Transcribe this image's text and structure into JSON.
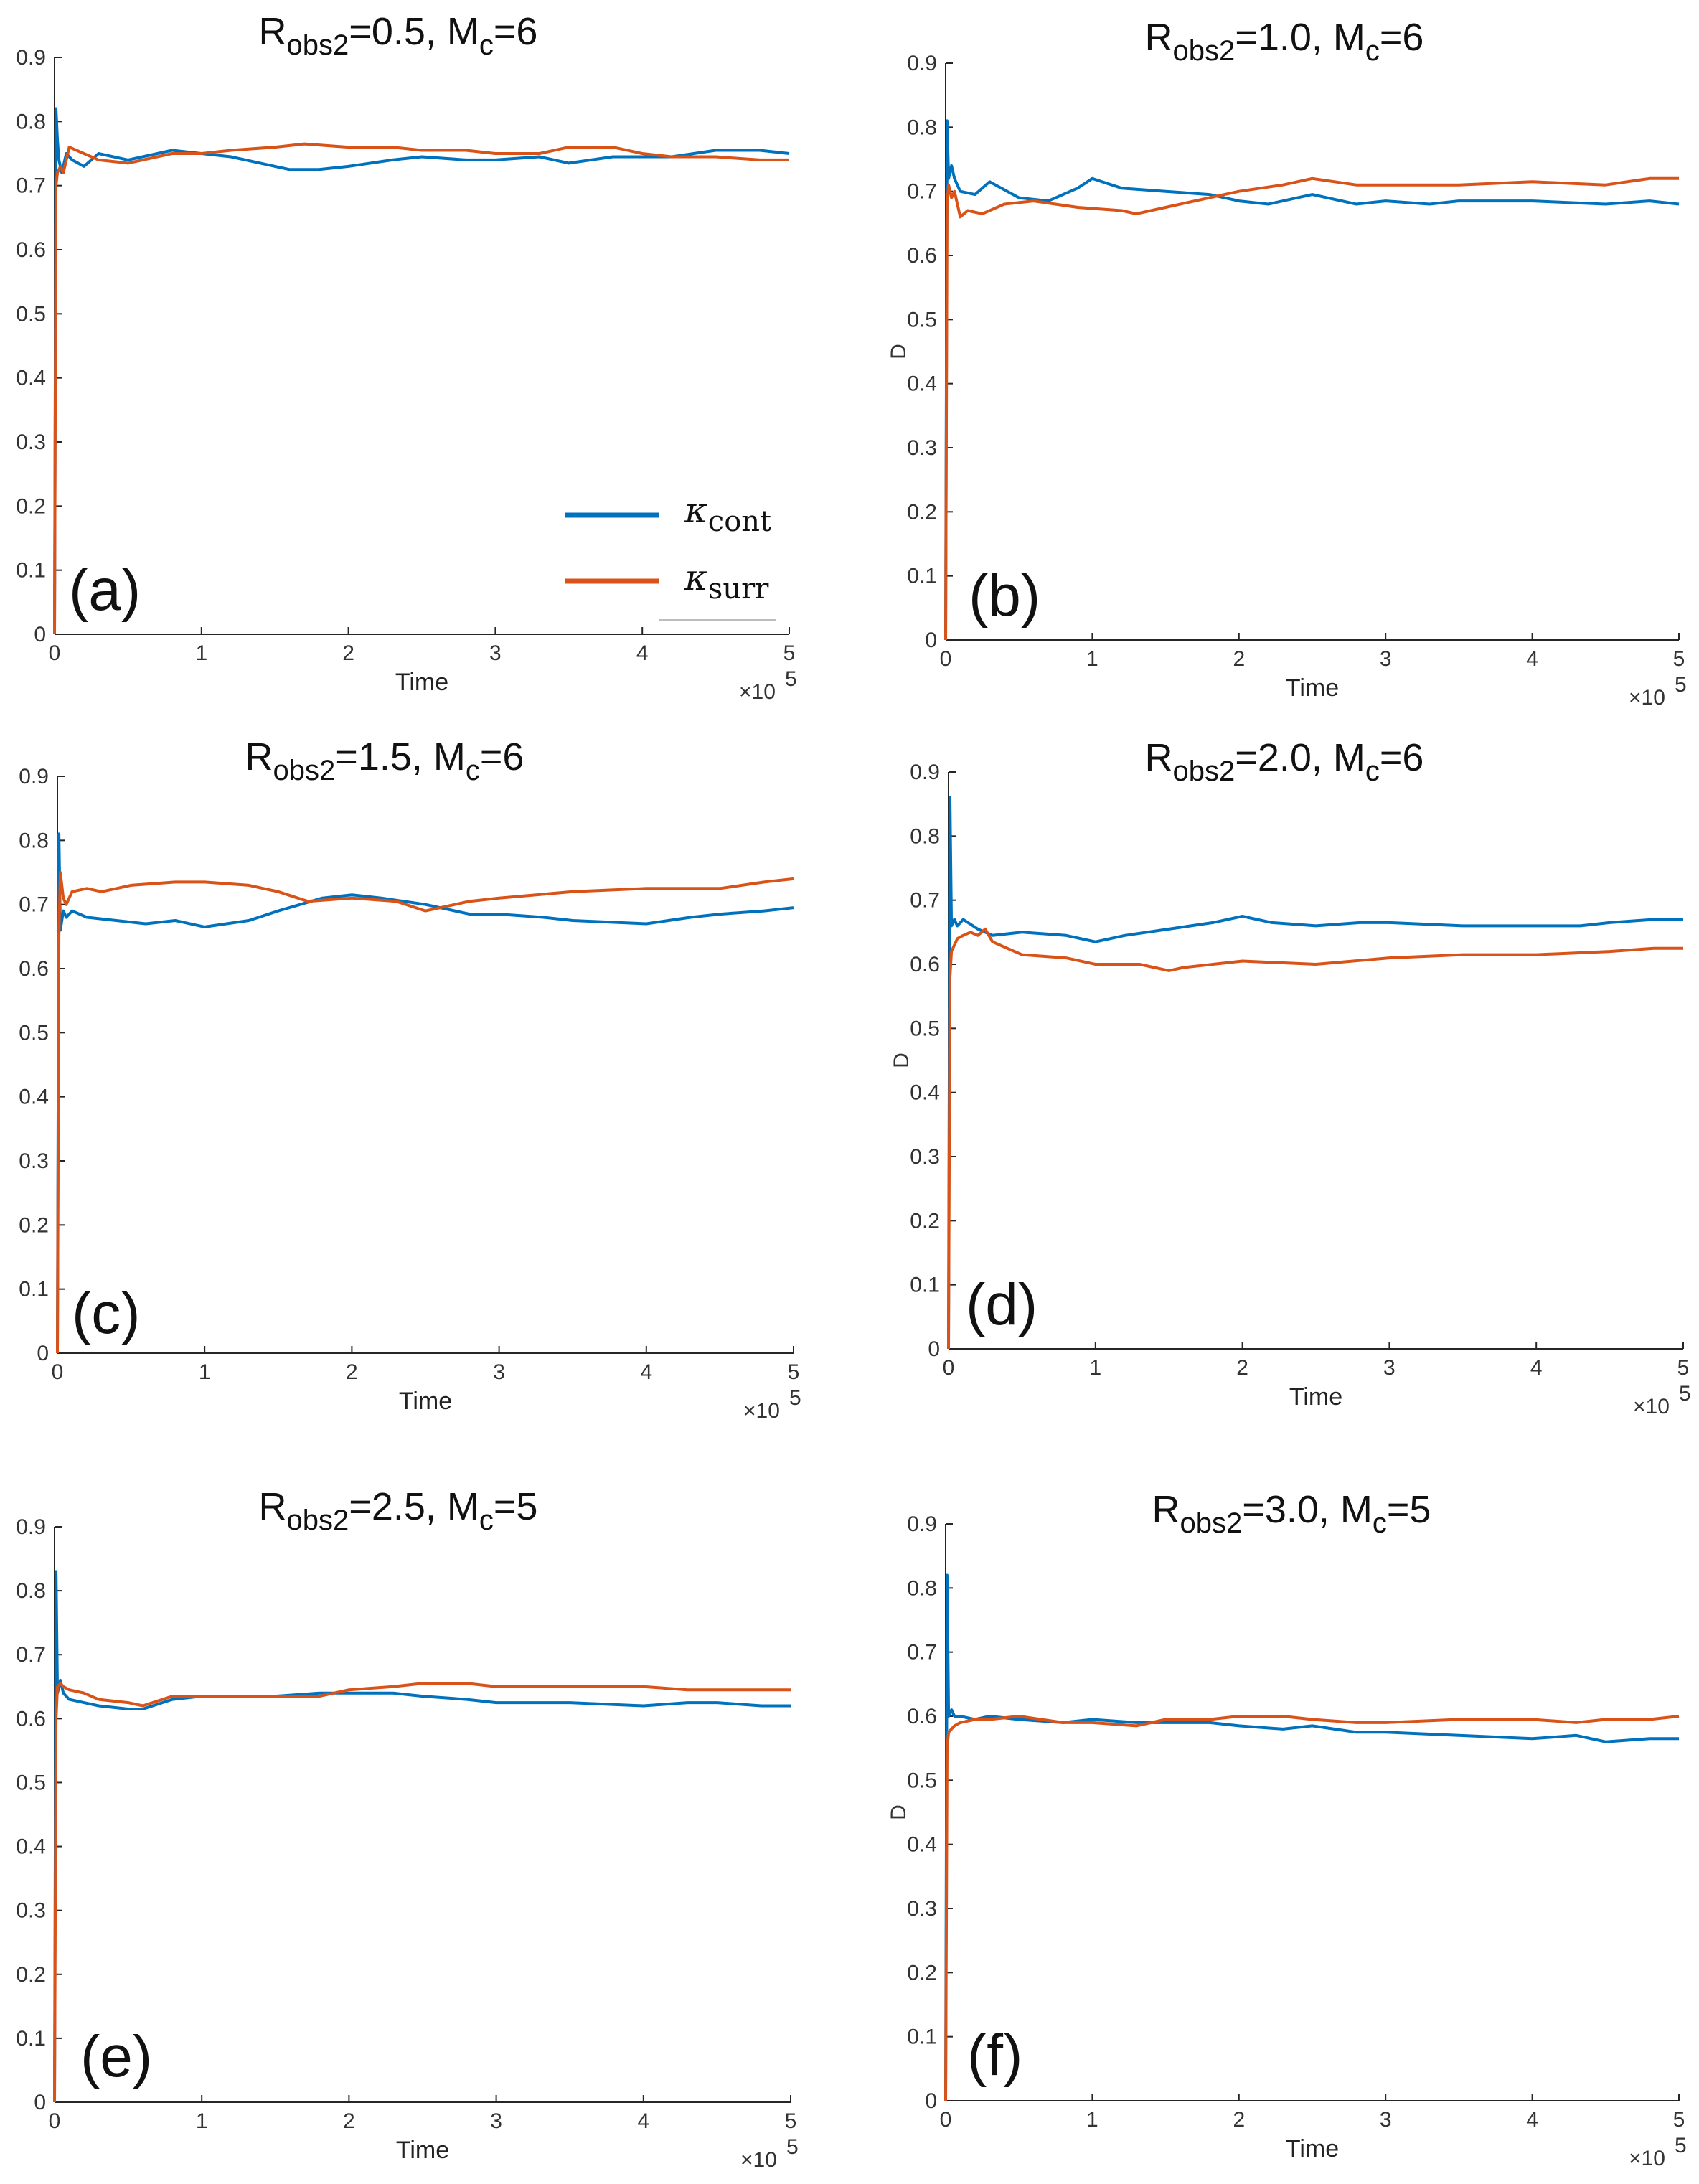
{
  "colors": {
    "cont": "#0072BD",
    "surr": "#D95319",
    "axis": "#262626"
  },
  "legend": {
    "cont": {
      "symbol": "κ",
      "sub": "cont"
    },
    "surr": {
      "symbol": "κ",
      "sub": "surr"
    }
  },
  "chart_data": [
    {
      "type": "line",
      "panel": "(a)",
      "title": {
        "main": "R",
        "sub": "obs2",
        "rest": "=0.5, M",
        "sub2": "c",
        "end": "=6"
      },
      "xlabel": "Time",
      "ylabel": "",
      "x_exponent": "×10",
      "x_exponent_power": "5",
      "xlim": [
        0,
        5
      ],
      "ylim": [
        0,
        0.9
      ],
      "xticks": [
        "0",
        "1",
        "2",
        "3",
        "4",
        "5"
      ],
      "yticks": [
        "0",
        "0.1",
        "0.2",
        "0.3",
        "0.4",
        "0.5",
        "0.6",
        "0.7",
        "0.8",
        "0.9"
      ],
      "series": [
        {
          "name": "κcont",
          "x": [
            0,
            0.01,
            0.02,
            0.03,
            0.05,
            0.08,
            0.12,
            0.2,
            0.3,
            0.5,
            0.8,
            1.0,
            1.2,
            1.5,
            1.6,
            1.8,
            2.0,
            2.3,
            2.5,
            2.8,
            3.0,
            3.3,
            3.5,
            3.8,
            4.0,
            4.2,
            4.5,
            4.8,
            5.0
          ],
          "y": [
            0,
            0.82,
            0.77,
            0.74,
            0.72,
            0.75,
            0.74,
            0.73,
            0.75,
            0.74,
            0.755,
            0.75,
            0.745,
            0.73,
            0.725,
            0.725,
            0.73,
            0.74,
            0.745,
            0.74,
            0.74,
            0.745,
            0.735,
            0.745,
            0.745,
            0.745,
            0.755,
            0.755,
            0.75
          ]
        },
        {
          "name": "κsurr",
          "x": [
            0,
            0.01,
            0.02,
            0.04,
            0.06,
            0.1,
            0.2,
            0.3,
            0.5,
            0.8,
            1.0,
            1.2,
            1.5,
            1.7,
            2.0,
            2.3,
            2.5,
            2.8,
            3.0,
            3.3,
            3.5,
            3.8,
            4.0,
            4.2,
            4.5,
            4.8,
            5.0
          ],
          "y": [
            0,
            0.7,
            0.72,
            0.73,
            0.72,
            0.76,
            0.75,
            0.74,
            0.735,
            0.75,
            0.75,
            0.755,
            0.76,
            0.765,
            0.76,
            0.76,
            0.755,
            0.755,
            0.75,
            0.75,
            0.76,
            0.76,
            0.75,
            0.745,
            0.745,
            0.74,
            0.74
          ]
        }
      ]
    },
    {
      "type": "line",
      "panel": "(b)",
      "title": {
        "main": "R",
        "sub": "obs2",
        "rest": "=1.0, M",
        "sub2": "c",
        "end": "=6"
      },
      "xlabel": "Time",
      "ylabel": "D",
      "x_exponent": "×10",
      "x_exponent_power": "5",
      "xlim": [
        0,
        5
      ],
      "ylim": [
        0,
        0.9
      ],
      "xticks": [
        "0",
        "1",
        "2",
        "3",
        "4",
        "5"
      ],
      "yticks": [
        "0",
        "0.1",
        "0.2",
        "0.3",
        "0.4",
        "0.5",
        "0.6",
        "0.7",
        "0.8",
        "0.9"
      ],
      "series": [
        {
          "name": "κcont",
          "x": [
            0,
            0.01,
            0.02,
            0.04,
            0.06,
            0.1,
            0.2,
            0.3,
            0.5,
            0.7,
            0.9,
            1.0,
            1.2,
            1.5,
            1.8,
            2.0,
            2.2,
            2.5,
            2.8,
            3.0,
            3.3,
            3.5,
            4.0,
            4.5,
            4.8,
            5.0
          ],
          "y": [
            0,
            0.81,
            0.72,
            0.74,
            0.72,
            0.7,
            0.695,
            0.715,
            0.69,
            0.685,
            0.705,
            0.72,
            0.705,
            0.7,
            0.695,
            0.685,
            0.68,
            0.695,
            0.68,
            0.685,
            0.68,
            0.685,
            0.685,
            0.68,
            0.685,
            0.68
          ]
        },
        {
          "name": "κsurr",
          "x": [
            0,
            0.01,
            0.02,
            0.04,
            0.06,
            0.1,
            0.15,
            0.25,
            0.4,
            0.6,
            0.9,
            1.2,
            1.3,
            1.5,
            1.8,
            2.0,
            2.3,
            2.5,
            2.8,
            3.0,
            3.5,
            4.0,
            4.5,
            4.8,
            5.0
          ],
          "y": [
            0,
            0.68,
            0.71,
            0.69,
            0.7,
            0.66,
            0.67,
            0.665,
            0.68,
            0.685,
            0.675,
            0.67,
            0.665,
            0.675,
            0.69,
            0.7,
            0.71,
            0.72,
            0.71,
            0.71,
            0.71,
            0.715,
            0.71,
            0.72,
            0.72
          ]
        }
      ]
    },
    {
      "type": "line",
      "panel": "(c)",
      "title": {
        "main": "R",
        "sub": "obs2",
        "rest": "=1.5, M",
        "sub2": "c",
        "end": "=6"
      },
      "xlabel": "Time",
      "ylabel": "",
      "x_exponent": "×10",
      "x_exponent_power": "5",
      "xlim": [
        0,
        5
      ],
      "ylim": [
        0,
        0.9
      ],
      "xticks": [
        "0",
        "1",
        "2",
        "3",
        "4",
        "5"
      ],
      "yticks": [
        "0",
        "0.1",
        "0.2",
        "0.3",
        "0.4",
        "0.5",
        "0.6",
        "0.7",
        "0.8",
        "0.9"
      ],
      "series": [
        {
          "name": "κcont",
          "x": [
            0,
            0.01,
            0.02,
            0.04,
            0.06,
            0.1,
            0.2,
            0.4,
            0.6,
            0.8,
            1.0,
            1.3,
            1.5,
            1.8,
            2.0,
            2.2,
            2.5,
            2.8,
            3.0,
            3.3,
            3.5,
            4.0,
            4.3,
            4.5,
            4.8,
            5.0
          ],
          "y": [
            0,
            0.81,
            0.66,
            0.69,
            0.68,
            0.69,
            0.68,
            0.675,
            0.67,
            0.675,
            0.665,
            0.675,
            0.69,
            0.71,
            0.715,
            0.71,
            0.7,
            0.685,
            0.685,
            0.68,
            0.675,
            0.67,
            0.68,
            0.685,
            0.69,
            0.695
          ]
        },
        {
          "name": "κsurr",
          "x": [
            0,
            0.01,
            0.02,
            0.04,
            0.06,
            0.1,
            0.2,
            0.3,
            0.5,
            0.8,
            1.0,
            1.3,
            1.5,
            1.7,
            2.0,
            2.3,
            2.5,
            2.8,
            3.0,
            3.5,
            4.0,
            4.3,
            4.5,
            4.8,
            5.0
          ],
          "y": [
            0,
            0.65,
            0.75,
            0.71,
            0.7,
            0.72,
            0.725,
            0.72,
            0.73,
            0.735,
            0.735,
            0.73,
            0.72,
            0.705,
            0.71,
            0.705,
            0.69,
            0.705,
            0.71,
            0.72,
            0.725,
            0.725,
            0.725,
            0.735,
            0.74
          ]
        }
      ]
    },
    {
      "type": "line",
      "panel": "(d)",
      "title": {
        "main": "R",
        "sub": "obs2",
        "rest": "=2.0, M",
        "sub2": "c",
        "end": "=6"
      },
      "xlabel": "Time",
      "ylabel": "D",
      "x_exponent": "×10",
      "x_exponent_power": "5",
      "xlim": [
        0,
        5
      ],
      "ylim": [
        0,
        0.9
      ],
      "xticks": [
        "0",
        "1",
        "2",
        "3",
        "4",
        "5"
      ],
      "yticks": [
        "0",
        "0.1",
        "0.2",
        "0.3",
        "0.4",
        "0.5",
        "0.6",
        "0.7",
        "0.8",
        "0.9"
      ],
      "series": [
        {
          "name": "κcont",
          "x": [
            0,
            0.01,
            0.02,
            0.04,
            0.06,
            0.1,
            0.2,
            0.3,
            0.5,
            0.8,
            1.0,
            1.2,
            1.5,
            1.8,
            2.0,
            2.2,
            2.5,
            2.8,
            3.0,
            3.5,
            4.0,
            4.3,
            4.5,
            4.8,
            5.0
          ],
          "y": [
            0,
            0.86,
            0.66,
            0.67,
            0.66,
            0.67,
            0.655,
            0.645,
            0.65,
            0.645,
            0.635,
            0.645,
            0.655,
            0.665,
            0.675,
            0.665,
            0.66,
            0.665,
            0.665,
            0.66,
            0.66,
            0.66,
            0.665,
            0.67,
            0.67
          ]
        },
        {
          "name": "κsurr",
          "x": [
            0,
            0.01,
            0.02,
            0.04,
            0.06,
            0.1,
            0.15,
            0.2,
            0.25,
            0.3,
            0.4,
            0.5,
            0.8,
            1.0,
            1.3,
            1.5,
            1.6,
            1.8,
            2.0,
            2.5,
            3.0,
            3.5,
            4.0,
            4.5,
            4.8,
            5.0
          ],
          "y": [
            0,
            0.58,
            0.62,
            0.63,
            0.64,
            0.645,
            0.65,
            0.645,
            0.655,
            0.635,
            0.625,
            0.615,
            0.61,
            0.6,
            0.6,
            0.59,
            0.595,
            0.6,
            0.605,
            0.6,
            0.61,
            0.615,
            0.615,
            0.62,
            0.625,
            0.625
          ]
        }
      ]
    },
    {
      "type": "line",
      "panel": "(e)",
      "title": {
        "main": "R",
        "sub": "obs2",
        "rest": "=2.5, M",
        "sub2": "c",
        "end": "=5"
      },
      "xlabel": "Time",
      "ylabel": "",
      "x_exponent": "×10",
      "x_exponent_power": "5",
      "xlim": [
        0,
        5
      ],
      "ylim": [
        0,
        0.9
      ],
      "xticks": [
        "0",
        "1",
        "2",
        "3",
        "4",
        "5"
      ],
      "yticks": [
        "0",
        "0.1",
        "0.2",
        "0.3",
        "0.4",
        "0.5",
        "0.6",
        "0.7",
        "0.8",
        "0.9"
      ],
      "series": [
        {
          "name": "κcont",
          "x": [
            0,
            0.01,
            0.02,
            0.04,
            0.06,
            0.1,
            0.2,
            0.3,
            0.5,
            0.6,
            0.8,
            1.0,
            1.3,
            1.5,
            1.8,
            2.0,
            2.3,
            2.5,
            2.8,
            3.0,
            3.5,
            4.0,
            4.3,
            4.5,
            4.8,
            5.0
          ],
          "y": [
            0,
            0.83,
            0.64,
            0.66,
            0.64,
            0.63,
            0.625,
            0.62,
            0.615,
            0.615,
            0.63,
            0.635,
            0.635,
            0.635,
            0.64,
            0.64,
            0.64,
            0.635,
            0.63,
            0.625,
            0.625,
            0.62,
            0.625,
            0.625,
            0.62,
            0.62
          ]
        },
        {
          "name": "κsurr",
          "x": [
            0,
            0.01,
            0.02,
            0.04,
            0.06,
            0.1,
            0.2,
            0.3,
            0.5,
            0.6,
            0.8,
            1.0,
            1.3,
            1.5,
            1.8,
            2.0,
            2.3,
            2.5,
            2.8,
            3.0,
            3.5,
            4.0,
            4.3,
            4.5,
            4.8,
            5.0
          ],
          "y": [
            0,
            0.6,
            0.65,
            0.655,
            0.65,
            0.645,
            0.64,
            0.63,
            0.625,
            0.62,
            0.635,
            0.635,
            0.635,
            0.635,
            0.635,
            0.645,
            0.65,
            0.655,
            0.655,
            0.65,
            0.65,
            0.65,
            0.645,
            0.645,
            0.645,
            0.645
          ]
        }
      ]
    },
    {
      "type": "line",
      "panel": "(f)",
      "title": {
        "main": "R",
        "sub": "obs2",
        "rest": "=3.0, M",
        "sub2": "c",
        "end": "=5"
      },
      "xlabel": "Time",
      "ylabel": "D",
      "x_exponent": "×10",
      "x_exponent_power": "5",
      "xlim": [
        0,
        5
      ],
      "ylim": [
        0,
        0.9
      ],
      "xticks": [
        "0",
        "1",
        "2",
        "3",
        "4",
        "5"
      ],
      "yticks": [
        "0",
        "0.1",
        "0.2",
        "0.3",
        "0.4",
        "0.5",
        "0.6",
        "0.7",
        "0.8",
        "0.9"
      ],
      "series": [
        {
          "name": "κcont",
          "x": [
            0,
            0.01,
            0.02,
            0.04,
            0.06,
            0.1,
            0.2,
            0.3,
            0.5,
            0.8,
            1.0,
            1.3,
            1.5,
            1.8,
            2.0,
            2.3,
            2.5,
            2.8,
            3.0,
            3.5,
            4.0,
            4.3,
            4.5,
            4.8,
            5.0
          ],
          "y": [
            0,
            0.82,
            0.6,
            0.61,
            0.6,
            0.6,
            0.595,
            0.6,
            0.595,
            0.59,
            0.595,
            0.59,
            0.59,
            0.59,
            0.585,
            0.58,
            0.585,
            0.575,
            0.575,
            0.57,
            0.565,
            0.57,
            0.56,
            0.565,
            0.565
          ]
        },
        {
          "name": "κsurr",
          "x": [
            0,
            0.01,
            0.02,
            0.04,
            0.06,
            0.1,
            0.2,
            0.3,
            0.5,
            0.8,
            1.0,
            1.3,
            1.5,
            1.8,
            2.0,
            2.3,
            2.5,
            2.8,
            3.0,
            3.5,
            4.0,
            4.3,
            4.5,
            4.8,
            5.0
          ],
          "y": [
            0,
            0.55,
            0.575,
            0.58,
            0.585,
            0.59,
            0.595,
            0.595,
            0.6,
            0.59,
            0.59,
            0.585,
            0.595,
            0.595,
            0.6,
            0.6,
            0.595,
            0.59,
            0.59,
            0.595,
            0.595,
            0.59,
            0.595,
            0.595,
            0.6
          ]
        }
      ]
    }
  ]
}
